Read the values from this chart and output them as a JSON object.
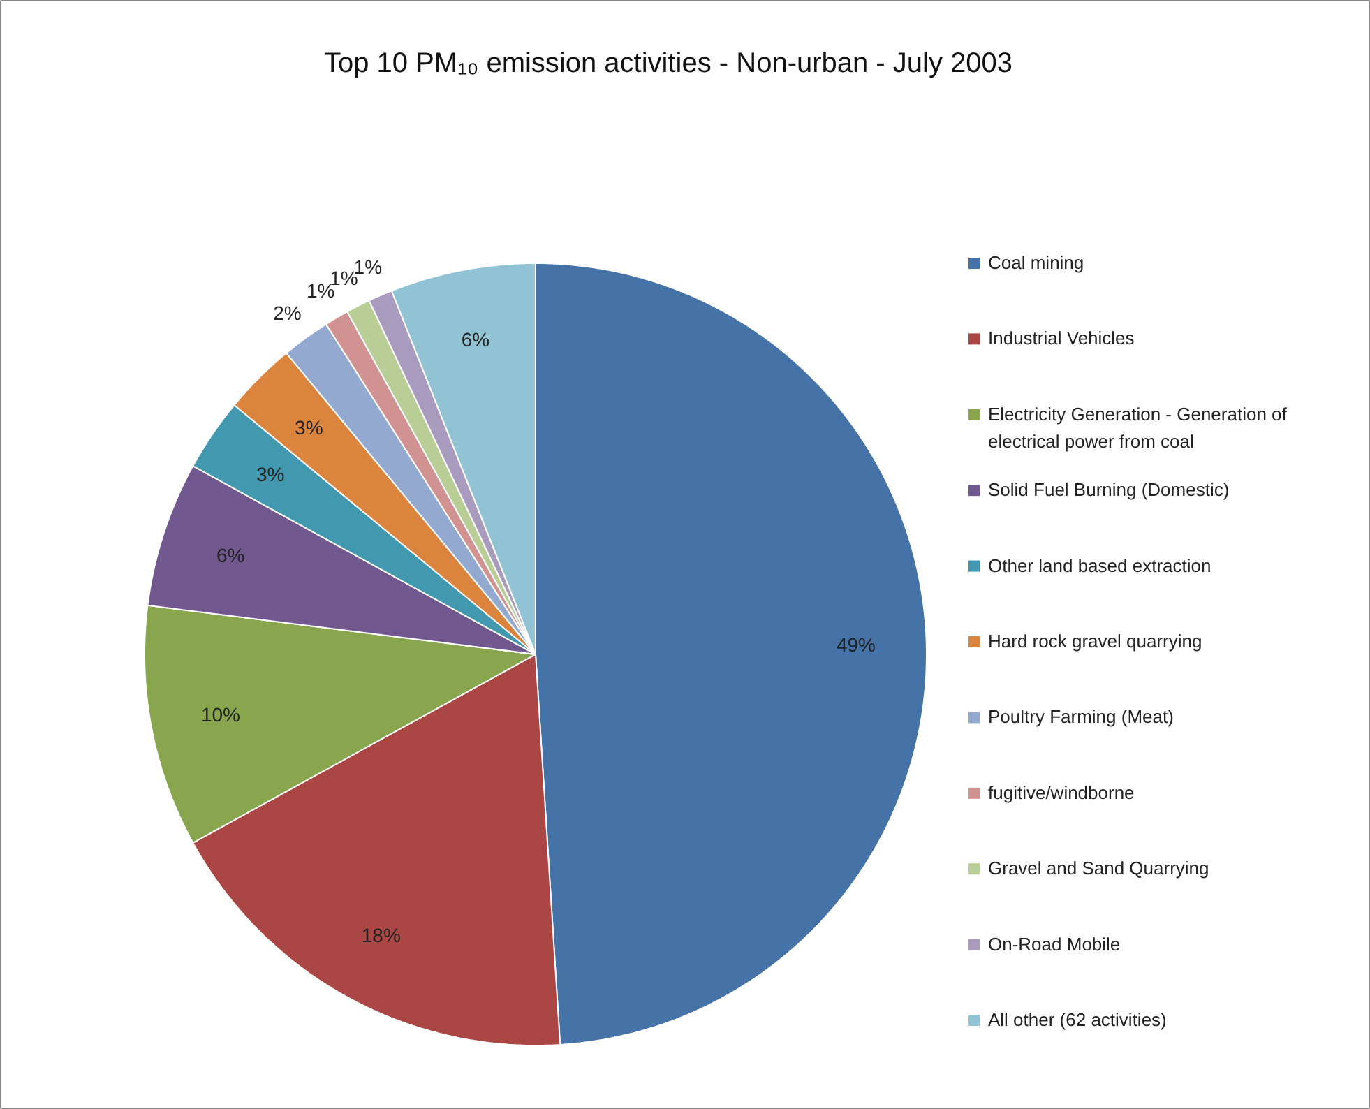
{
  "chart_data": {
    "type": "pie",
    "title": "Top 10 PM₁₀ emission activities - Non-urban - July 2003",
    "categories": [
      "Coal mining",
      "Industrial Vehicles",
      "Electricity Generation - Generation of electrical power from coal",
      "Solid Fuel Burning (Domestic)",
      "Other land based extraction",
      "Hard rock gravel quarrying",
      "Poultry Farming (Meat)",
      "fugitive/windborne",
      "Gravel and Sand Quarrying",
      "On-Road Mobile",
      "All other (62 activities)"
    ],
    "values": [
      49,
      18,
      10,
      6,
      3,
      3,
      2,
      1,
      1,
      1,
      6
    ],
    "colors": [
      "#4572a7",
      "#aa4643",
      "#89a54e",
      "#71588f",
      "#4198af",
      "#db843d",
      "#93a9cf",
      "#d19392",
      "#b9cd96",
      "#a99bbd",
      "#92c3d4"
    ],
    "value_labels": [
      "49%",
      "18%",
      "10%",
      "6%",
      "3%",
      "3%",
      "2%",
      "1%",
      "1%",
      "1%",
      "6%"
    ],
    "legend": "right"
  }
}
